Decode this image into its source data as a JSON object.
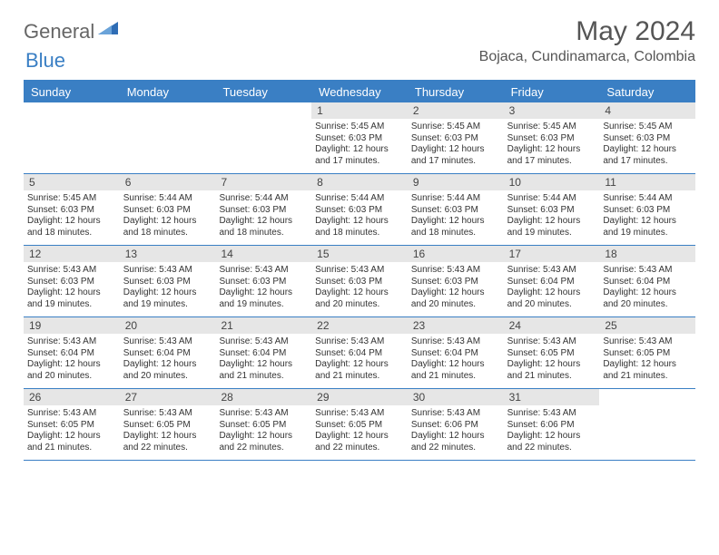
{
  "logo": {
    "textA": "General",
    "textB": "Blue"
  },
  "header": {
    "month": "May 2024",
    "location": "Bojaca, Cundinamarca, Colombia"
  },
  "colors": {
    "accent": "#3a7fc4",
    "daynum_bg": "#e6e6e6",
    "text": "#333333",
    "muted": "#555555",
    "bg": "#ffffff"
  },
  "dow": [
    "Sunday",
    "Monday",
    "Tuesday",
    "Wednesday",
    "Thursday",
    "Friday",
    "Saturday"
  ],
  "weeks": [
    [
      null,
      null,
      null,
      {
        "n": "1",
        "sr": "5:45 AM",
        "ss": "6:03 PM",
        "dl": "12 hours and 17 minutes."
      },
      {
        "n": "2",
        "sr": "5:45 AM",
        "ss": "6:03 PM",
        "dl": "12 hours and 17 minutes."
      },
      {
        "n": "3",
        "sr": "5:45 AM",
        "ss": "6:03 PM",
        "dl": "12 hours and 17 minutes."
      },
      {
        "n": "4",
        "sr": "5:45 AM",
        "ss": "6:03 PM",
        "dl": "12 hours and 17 minutes."
      }
    ],
    [
      {
        "n": "5",
        "sr": "5:45 AM",
        "ss": "6:03 PM",
        "dl": "12 hours and 18 minutes."
      },
      {
        "n": "6",
        "sr": "5:44 AM",
        "ss": "6:03 PM",
        "dl": "12 hours and 18 minutes."
      },
      {
        "n": "7",
        "sr": "5:44 AM",
        "ss": "6:03 PM",
        "dl": "12 hours and 18 minutes."
      },
      {
        "n": "8",
        "sr": "5:44 AM",
        "ss": "6:03 PM",
        "dl": "12 hours and 18 minutes."
      },
      {
        "n": "9",
        "sr": "5:44 AM",
        "ss": "6:03 PM",
        "dl": "12 hours and 18 minutes."
      },
      {
        "n": "10",
        "sr": "5:44 AM",
        "ss": "6:03 PM",
        "dl": "12 hours and 19 minutes."
      },
      {
        "n": "11",
        "sr": "5:44 AM",
        "ss": "6:03 PM",
        "dl": "12 hours and 19 minutes."
      }
    ],
    [
      {
        "n": "12",
        "sr": "5:43 AM",
        "ss": "6:03 PM",
        "dl": "12 hours and 19 minutes."
      },
      {
        "n": "13",
        "sr": "5:43 AM",
        "ss": "6:03 PM",
        "dl": "12 hours and 19 minutes."
      },
      {
        "n": "14",
        "sr": "5:43 AM",
        "ss": "6:03 PM",
        "dl": "12 hours and 19 minutes."
      },
      {
        "n": "15",
        "sr": "5:43 AM",
        "ss": "6:03 PM",
        "dl": "12 hours and 20 minutes."
      },
      {
        "n": "16",
        "sr": "5:43 AM",
        "ss": "6:03 PM",
        "dl": "12 hours and 20 minutes."
      },
      {
        "n": "17",
        "sr": "5:43 AM",
        "ss": "6:04 PM",
        "dl": "12 hours and 20 minutes."
      },
      {
        "n": "18",
        "sr": "5:43 AM",
        "ss": "6:04 PM",
        "dl": "12 hours and 20 minutes."
      }
    ],
    [
      {
        "n": "19",
        "sr": "5:43 AM",
        "ss": "6:04 PM",
        "dl": "12 hours and 20 minutes."
      },
      {
        "n": "20",
        "sr": "5:43 AM",
        "ss": "6:04 PM",
        "dl": "12 hours and 20 minutes."
      },
      {
        "n": "21",
        "sr": "5:43 AM",
        "ss": "6:04 PM",
        "dl": "12 hours and 21 minutes."
      },
      {
        "n": "22",
        "sr": "5:43 AM",
        "ss": "6:04 PM",
        "dl": "12 hours and 21 minutes."
      },
      {
        "n": "23",
        "sr": "5:43 AM",
        "ss": "6:04 PM",
        "dl": "12 hours and 21 minutes."
      },
      {
        "n": "24",
        "sr": "5:43 AM",
        "ss": "6:05 PM",
        "dl": "12 hours and 21 minutes."
      },
      {
        "n": "25",
        "sr": "5:43 AM",
        "ss": "6:05 PM",
        "dl": "12 hours and 21 minutes."
      }
    ],
    [
      {
        "n": "26",
        "sr": "5:43 AM",
        "ss": "6:05 PM",
        "dl": "12 hours and 21 minutes."
      },
      {
        "n": "27",
        "sr": "5:43 AM",
        "ss": "6:05 PM",
        "dl": "12 hours and 22 minutes."
      },
      {
        "n": "28",
        "sr": "5:43 AM",
        "ss": "6:05 PM",
        "dl": "12 hours and 22 minutes."
      },
      {
        "n": "29",
        "sr": "5:43 AM",
        "ss": "6:05 PM",
        "dl": "12 hours and 22 minutes."
      },
      {
        "n": "30",
        "sr": "5:43 AM",
        "ss": "6:06 PM",
        "dl": "12 hours and 22 minutes."
      },
      {
        "n": "31",
        "sr": "5:43 AM",
        "ss": "6:06 PM",
        "dl": "12 hours and 22 minutes."
      },
      null
    ]
  ],
  "labels": {
    "sunrise": "Sunrise: ",
    "sunset": "Sunset: ",
    "daylight": "Daylight: "
  }
}
